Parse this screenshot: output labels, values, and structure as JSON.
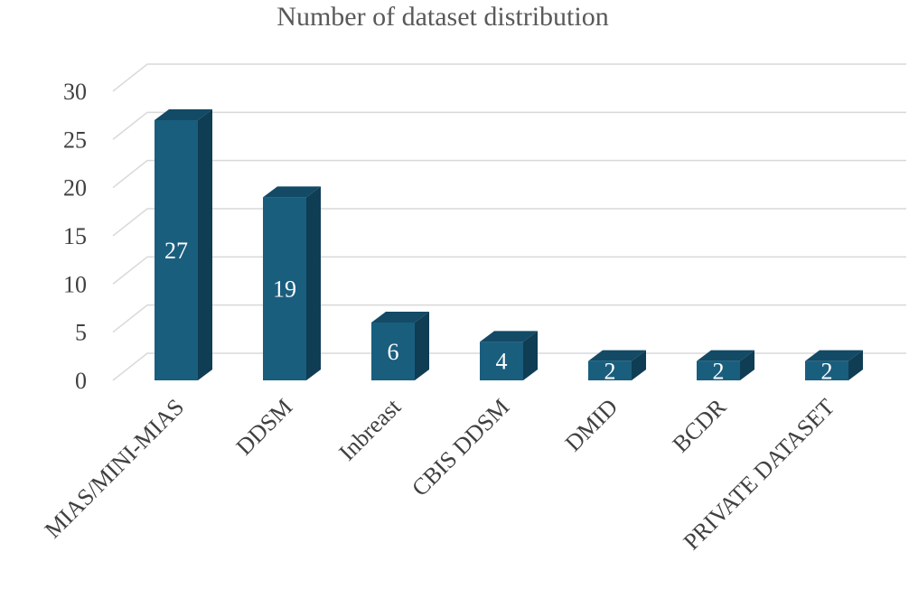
{
  "chart_data": {
    "type": "bar",
    "title": "Number of dataset distribution",
    "categories": [
      "MIAS/MINI-MIAS",
      "DDSM",
      "Inbreast",
      "CBIS DDSM",
      "DMID",
      "BCDR",
      "PRIVATE DATASET"
    ],
    "values": [
      27,
      19,
      6,
      4,
      2,
      2,
      2
    ],
    "yticks": [
      "0",
      "5",
      "10",
      "15",
      "20",
      "25",
      "30"
    ],
    "ylim": [
      0,
      30
    ],
    "grid": true,
    "style": "3d-column",
    "colors": {
      "front": "#1a5e7e",
      "side": "#0f3d54",
      "top": "#134a65"
    }
  }
}
